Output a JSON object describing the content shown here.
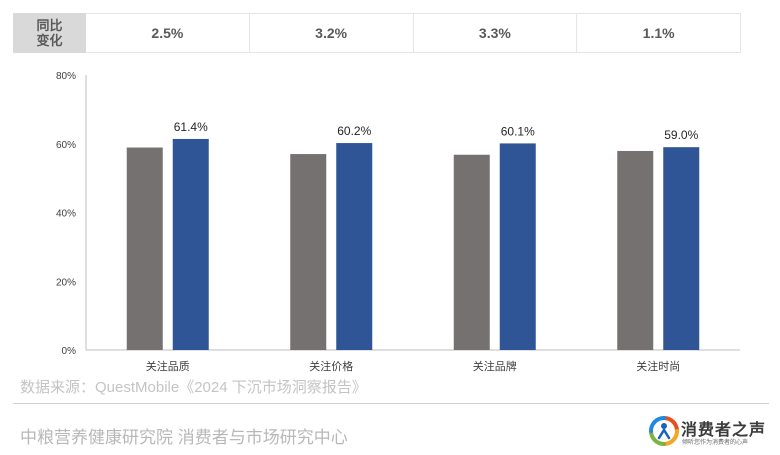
{
  "yoy": {
    "header": "同比变化",
    "values": [
      "2.5%",
      "3.2%",
      "3.3%",
      "1.1%"
    ]
  },
  "chart_data": {
    "type": "bar",
    "categories": [
      "关注品质",
      "关注价格",
      "关注品牌",
      "关注时尚"
    ],
    "series": [
      {
        "values": [
          58.9,
          57.0,
          56.8,
          57.9
        ],
        "color": "#767171"
      },
      {
        "values": [
          61.4,
          60.2,
          60.1,
          59.0
        ],
        "color": "#2f5597"
      }
    ],
    "data_labels": [
      "61.4%",
      "60.2%",
      "60.1%",
      "59.0%"
    ],
    "ylim": [
      0,
      80
    ],
    "yticks": [
      "0%",
      "20%",
      "40%",
      "60%",
      "80%"
    ],
    "title": "",
    "xlabel": "",
    "ylabel": "",
    "grid": false
  },
  "source": "数据来源：QuestMobile《2024 下沉市场洞察报告》",
  "footer": {
    "org": "中粮营养健康研究院 消费者与市场研究中心",
    "brand_name": "消费者之声",
    "brand_tagline": "倾听您作为消费者的心声"
  }
}
